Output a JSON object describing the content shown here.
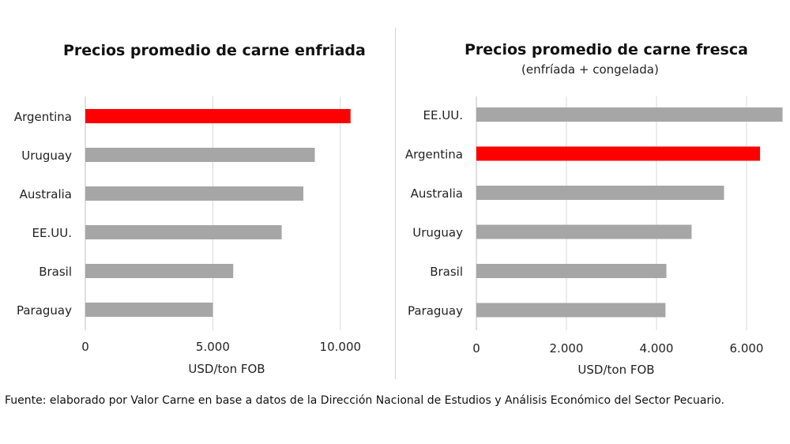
{
  "chart_data": [
    {
      "type": "bar",
      "orientation": "horizontal",
      "title": "Precios  promedio de carne enfriada",
      "subtitle": "",
      "xlabel": "USD/ton FOB",
      "categories": [
        "Argentina",
        "Uruguay",
        "Australia",
        "EE.UU.",
        "Brasil",
        "Paraguay"
      ],
      "values": [
        10400,
        9000,
        8550,
        7700,
        5800,
        5000
      ],
      "highlight": "Argentina",
      "xlim": [
        0,
        12500
      ],
      "xticks": [
        0,
        5000,
        10000
      ],
      "xtick_labels": [
        "0",
        "5.000",
        "10.000"
      ],
      "grid": true
    },
    {
      "type": "bar",
      "orientation": "horizontal",
      "title": "Precios promedio de carne fresca",
      "subtitle": "(enfríada + congelada)",
      "xlabel": "USD/ton FOB",
      "categories": [
        "EE.UU.",
        "Argentina",
        "Australia",
        "Uruguay",
        "Brasil",
        "Paraguay"
      ],
      "values": [
        6800,
        6300,
        5500,
        4780,
        4220,
        4200
      ],
      "highlight": "Argentina",
      "xlim": [
        0,
        7000
      ],
      "xticks": [
        0,
        2000,
        4000,
        6000
      ],
      "xtick_labels": [
        "0",
        "2.000",
        "4.000",
        "6.000"
      ],
      "grid": true
    }
  ],
  "colors": {
    "bar": "#a6a6a6",
    "highlight": "#ff0000",
    "grid": "#d9d9d9",
    "axis": "#bfbfbf"
  },
  "source": "Fuente: elaborado por Valor Carne en base a datos de la Dirección Nacional de Estudios y Análisis Económico del Sector Pecuario."
}
